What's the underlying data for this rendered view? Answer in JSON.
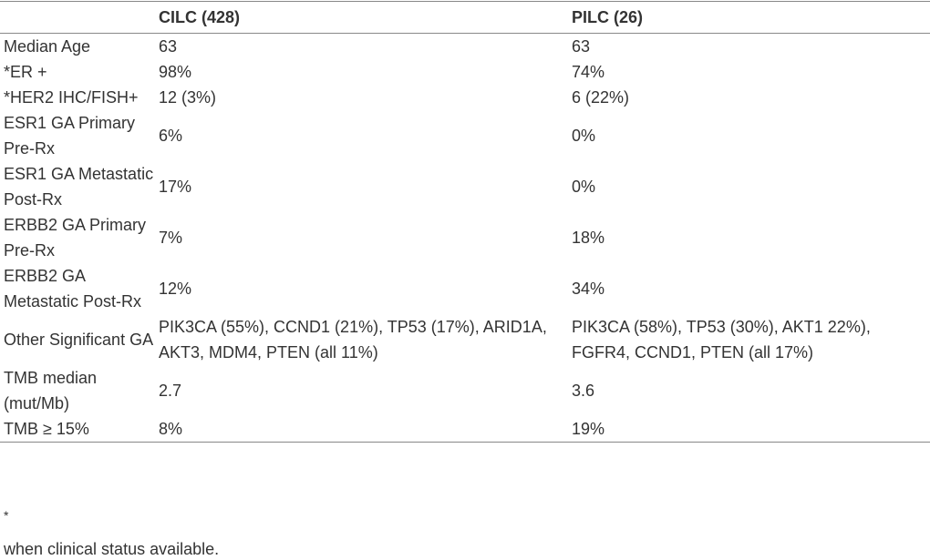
{
  "table": {
    "headers": [
      "",
      "CILC (428)",
      "PILC (26)"
    ],
    "rows": [
      {
        "label": "Median Age",
        "cilc": "63",
        "pilc": "63"
      },
      {
        "label": "*ER +",
        "cilc": "98%",
        "pilc": "74%"
      },
      {
        "label": "*HER2 IHC/FISH+",
        "cilc": "12 (3%)",
        "pilc": "6 (22%)"
      },
      {
        "label": "ESR1 GA Primary Pre-Rx",
        "cilc": "6%",
        "pilc": "0%"
      },
      {
        "label": "ESR1 GA Metastatic Post-Rx",
        "cilc": "17%",
        "pilc": "0%"
      },
      {
        "label": "ERBB2 GA Primary Pre-Rx",
        "cilc": "7%",
        "pilc": "18%"
      },
      {
        "label": "ERBB2 GA Metastatic Post-Rx",
        "cilc": "12%",
        "pilc": "34%"
      },
      {
        "label": "Other Significant GA",
        "cilc": "PIK3CA (55%), CCND1 (21%), TP53 (17%), ARID1A, AKT3, MDM4, PTEN (all 11%)",
        "pilc": "PIK3CA (58%), TP53 (30%), AKT1 22%), FGFR4, CCND1, PTEN (all 17%)"
      },
      {
        "label": "TMB median (mut/Mb)",
        "cilc": "2.7",
        "pilc": "3.6"
      },
      {
        "label": "TMB ≥ 15%",
        "cilc": "8%",
        "pilc": "19%"
      }
    ]
  },
  "footnote": {
    "mark": "*",
    "text": "when clinical status available."
  }
}
